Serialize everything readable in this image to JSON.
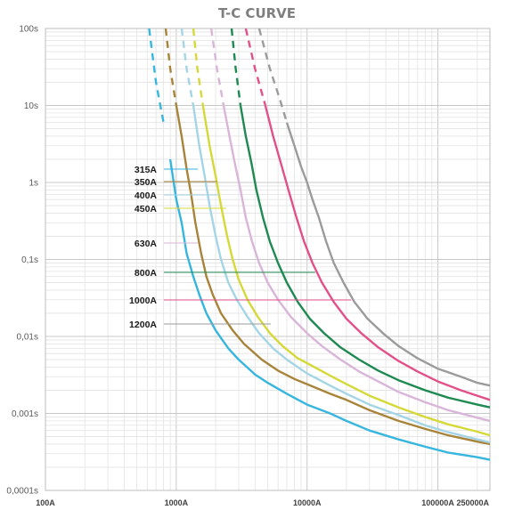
{
  "chart_data": {
    "type": "line",
    "title": "T-C CURVE",
    "x_scale": "log",
    "y_scale": "log",
    "xlim": [
      100,
      250000
    ],
    "ylim": [
      0.0001,
      100
    ],
    "grid": true,
    "x_tick_labels": [
      "100A",
      "1000A",
      "10000A",
      "100000A",
      "250000A"
    ],
    "x_tick_values": [
      100,
      1000,
      10000,
      100000,
      250000
    ],
    "y_tick_labels": [
      "100s",
      "10s",
      "1s",
      "0,1s",
      "0,01s",
      "0,001s",
      "0,0001s"
    ],
    "y_tick_values": [
      100,
      10,
      1,
      0.1,
      0.01,
      0.001,
      0.0001
    ],
    "series": [
      {
        "name": "315A",
        "color": "#36b6df",
        "dashed_until": 880,
        "points": [
          [
            620,
            100
          ],
          [
            700,
            20
          ],
          [
            800,
            6
          ],
          [
            900,
            2
          ],
          [
            1000,
            0.6
          ],
          [
            1100,
            0.3
          ],
          [
            1200,
            0.12
          ],
          [
            1350,
            0.06
          ],
          [
            1500,
            0.035
          ],
          [
            1700,
            0.02
          ],
          [
            2000,
            0.012
          ],
          [
            2500,
            0.007
          ],
          [
            3000,
            0.005
          ],
          [
            4000,
            0.0032
          ],
          [
            5000,
            0.0025
          ],
          [
            7000,
            0.0018
          ],
          [
            10000,
            0.0013
          ],
          [
            15000,
            0.001
          ],
          [
            20000,
            0.0008
          ],
          [
            30000,
            0.0006
          ],
          [
            50000,
            0.00046
          ],
          [
            80000,
            0.00037
          ],
          [
            120000,
            0.00031
          ],
          [
            200000,
            0.00027
          ],
          [
            250000,
            0.00025
          ]
        ]
      },
      {
        "name": "350A",
        "color": "#a8843a",
        "dashed_until": 1000,
        "points": [
          [
            830,
            100
          ],
          [
            900,
            30
          ],
          [
            1000,
            10
          ],
          [
            1100,
            4
          ],
          [
            1200,
            1.5
          ],
          [
            1300,
            0.7
          ],
          [
            1400,
            0.3
          ],
          [
            1550,
            0.12
          ],
          [
            1700,
            0.06
          ],
          [
            1900,
            0.035
          ],
          [
            2200,
            0.02
          ],
          [
            2700,
            0.012
          ],
          [
            3300,
            0.008
          ],
          [
            4500,
            0.005
          ],
          [
            6000,
            0.0036
          ],
          [
            8000,
            0.0028
          ],
          [
            10000,
            0.0024
          ],
          [
            15000,
            0.0018
          ],
          [
            20000,
            0.0015
          ],
          [
            30000,
            0.0011
          ],
          [
            50000,
            0.0008
          ],
          [
            80000,
            0.00063
          ],
          [
            120000,
            0.00052
          ],
          [
            200000,
            0.00043
          ],
          [
            250000,
            0.0004
          ]
        ]
      },
      {
        "name": "400A",
        "color": "#a3d5e6",
        "dashed_until": 1350,
        "points": [
          [
            1100,
            100
          ],
          [
            1200,
            30
          ],
          [
            1350,
            10
          ],
          [
            1500,
            3
          ],
          [
            1650,
            1.2
          ],
          [
            1800,
            0.5
          ],
          [
            2000,
            0.2
          ],
          [
            2200,
            0.1
          ],
          [
            2500,
            0.05
          ],
          [
            2900,
            0.03
          ],
          [
            3500,
            0.018
          ],
          [
            4300,
            0.011
          ],
          [
            5500,
            0.007
          ],
          [
            7000,
            0.005
          ],
          [
            10000,
            0.0033
          ],
          [
            15000,
            0.0023
          ],
          [
            20000,
            0.0018
          ],
          [
            30000,
            0.0013
          ],
          [
            50000,
            0.00095
          ],
          [
            80000,
            0.0007
          ],
          [
            120000,
            0.00057
          ],
          [
            200000,
            0.00046
          ],
          [
            250000,
            0.00042
          ]
        ]
      },
      {
        "name": "450A",
        "color": "#d5d937",
        "dashed_until": 1600,
        "points": [
          [
            1350,
            100
          ],
          [
            1450,
            30
          ],
          [
            1600,
            10
          ],
          [
            1800,
            3
          ],
          [
            2000,
            1.2
          ],
          [
            2200,
            0.5
          ],
          [
            2450,
            0.2
          ],
          [
            2700,
            0.1
          ],
          [
            3000,
            0.055
          ],
          [
            3500,
            0.03
          ],
          [
            4200,
            0.018
          ],
          [
            5200,
            0.011
          ],
          [
            6500,
            0.0075
          ],
          [
            8500,
            0.0052
          ],
          [
            10000,
            0.0045
          ],
          [
            15000,
            0.0031
          ],
          [
            20000,
            0.0024
          ],
          [
            30000,
            0.0017
          ],
          [
            50000,
            0.0012
          ],
          [
            80000,
            0.0009
          ],
          [
            120000,
            0.00072
          ],
          [
            200000,
            0.00058
          ],
          [
            250000,
            0.00052
          ]
        ]
      },
      {
        "name": "630A",
        "color": "#d9b5d9",
        "dashed_until": 2300,
        "points": [
          [
            1850,
            100
          ],
          [
            2050,
            30
          ],
          [
            2300,
            10
          ],
          [
            2550,
            4
          ],
          [
            2800,
            1.8
          ],
          [
            3100,
            0.8
          ],
          [
            3400,
            0.35
          ],
          [
            3800,
            0.17
          ],
          [
            4300,
            0.09
          ],
          [
            5000,
            0.05
          ],
          [
            6000,
            0.03
          ],
          [
            7500,
            0.018
          ],
          [
            10000,
            0.011
          ],
          [
            13000,
            0.0075
          ],
          [
            18000,
            0.005
          ],
          [
            25000,
            0.0035
          ],
          [
            35000,
            0.0026
          ],
          [
            50000,
            0.0019
          ],
          [
            80000,
            0.0014
          ],
          [
            120000,
            0.0011
          ],
          [
            200000,
            0.00088
          ],
          [
            250000,
            0.0008
          ]
        ]
      },
      {
        "name": "800A",
        "color": "#1e8a52",
        "dashed_until": 3100,
        "points": [
          [
            2650,
            100
          ],
          [
            2850,
            30
          ],
          [
            3100,
            10
          ],
          [
            3400,
            4
          ],
          [
            3750,
            1.8
          ],
          [
            4100,
            0.8
          ],
          [
            4600,
            0.35
          ],
          [
            5200,
            0.17
          ],
          [
            6000,
            0.09
          ],
          [
            7000,
            0.05
          ],
          [
            8500,
            0.028
          ],
          [
            10500,
            0.017
          ],
          [
            13500,
            0.011
          ],
          [
            18000,
            0.0072
          ],
          [
            25000,
            0.005
          ],
          [
            35000,
            0.0036
          ],
          [
            50000,
            0.0027
          ],
          [
            80000,
            0.002
          ],
          [
            120000,
            0.0016
          ],
          [
            200000,
            0.0013
          ],
          [
            250000,
            0.0012
          ]
        ]
      },
      {
        "name": "1000A",
        "color": "#e2508a",
        "dashed_until": 4800,
        "points": [
          [
            3400,
            100
          ],
          [
            4000,
            30
          ],
          [
            4800,
            10
          ],
          [
            5500,
            4
          ],
          [
            6300,
            1.8
          ],
          [
            7200,
            0.8
          ],
          [
            8300,
            0.35
          ],
          [
            9500,
            0.17
          ],
          [
            11000,
            0.09
          ],
          [
            13000,
            0.05
          ],
          [
            16000,
            0.028
          ],
          [
            20000,
            0.017
          ],
          [
            26000,
            0.011
          ],
          [
            35000,
            0.0072
          ],
          [
            50000,
            0.0048
          ],
          [
            70000,
            0.0035
          ],
          [
            100000,
            0.0026
          ],
          [
            150000,
            0.002
          ],
          [
            200000,
            0.0017
          ],
          [
            250000,
            0.0015
          ]
        ]
      },
      {
        "name": "1200A",
        "color": "#9b9b9b",
        "dashed_until": 7000,
        "points": [
          [
            4300,
            100
          ],
          [
            5200,
            30
          ],
          [
            6200,
            12
          ],
          [
            7000,
            6
          ],
          [
            8000,
            3
          ],
          [
            9000,
            1.6
          ],
          [
            10000,
            1
          ],
          [
            11000,
            0.6
          ],
          [
            12300,
            0.35
          ],
          [
            14000,
            0.17
          ],
          [
            16000,
            0.09
          ],
          [
            19000,
            0.05
          ],
          [
            23000,
            0.028
          ],
          [
            29000,
            0.017
          ],
          [
            38000,
            0.011
          ],
          [
            50000,
            0.0075
          ],
          [
            70000,
            0.0052
          ],
          [
            100000,
            0.0038
          ],
          [
            150000,
            0.003
          ],
          [
            200000,
            0.0025
          ],
          [
            250000,
            0.0023
          ]
        ]
      }
    ]
  }
}
